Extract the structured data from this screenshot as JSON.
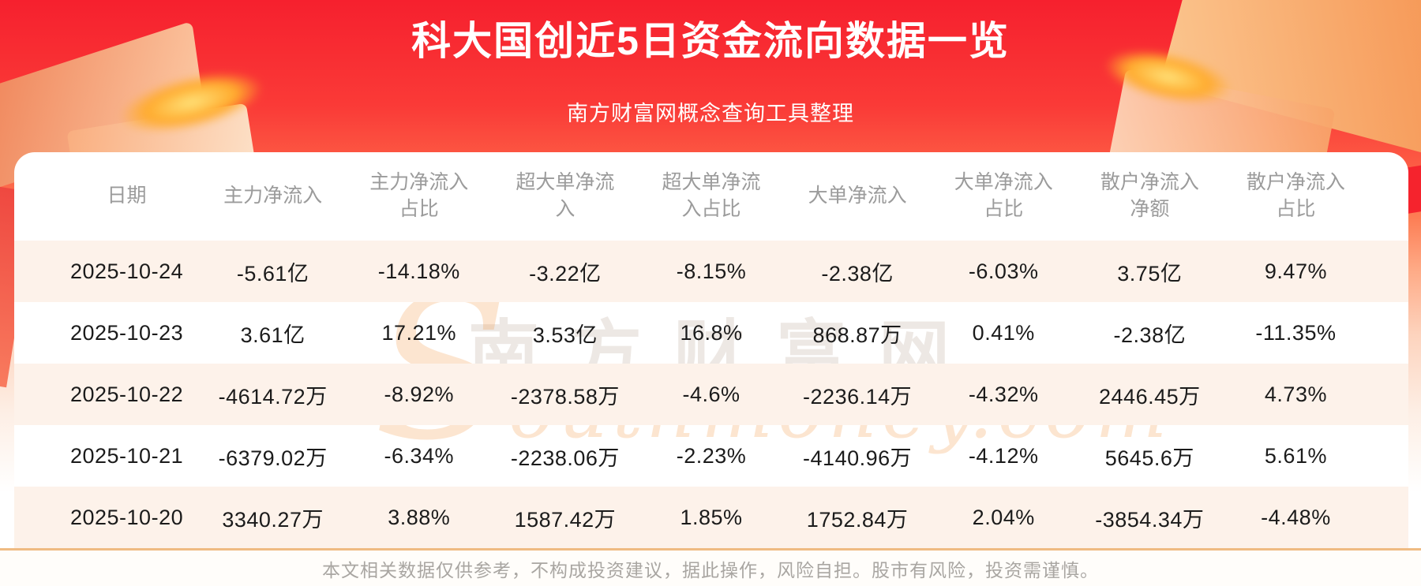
{
  "page": {
    "title": "科大国创近5日资金流向数据一览",
    "subtitle": "南方财富网概念查询工具整理",
    "disclaimer": "本文相关数据仅供参考，不构成投资建议，据此操作，风险自担。股市有风险，投资需谨慎。"
  },
  "colors": {
    "banner_red": "#f6202e",
    "row_stripe": "#fdf2ea",
    "separator": "#efbb82",
    "header_text": "#9b9b9b",
    "body_text": "#1b1b1b",
    "footer_text": "#a9a6a2",
    "title_text": "#ffffff"
  },
  "watermark": {
    "cn": "南方财富网",
    "en_initial": "S",
    "en_rest": "outhmoney.com"
  },
  "table": {
    "headers": [
      "日期",
      "主力净流入",
      "主力净流入\n占比",
      "超大单净流\n入",
      "超大单净流\n入占比",
      "大单净流入",
      "大单净流入\n占比",
      "散户净流入\n净额",
      "散户净流入\n占比"
    ],
    "rows": [
      [
        "2025-10-24",
        "-5.61亿",
        "-14.18%",
        "-3.22亿",
        "-8.15%",
        "-2.38亿",
        "-6.03%",
        "3.75亿",
        "9.47%"
      ],
      [
        "2025-10-23",
        "3.61亿",
        "17.21%",
        "3.53亿",
        "16.8%",
        "868.87万",
        "0.41%",
        "-2.38亿",
        "-11.35%"
      ],
      [
        "2025-10-22",
        "-4614.72万",
        "-8.92%",
        "-2378.58万",
        "-4.6%",
        "-2236.14万",
        "-4.32%",
        "2446.45万",
        "4.73%"
      ],
      [
        "2025-10-21",
        "-6379.02万",
        "-6.34%",
        "-2238.06万",
        "-2.23%",
        "-4140.96万",
        "-4.12%",
        "5645.6万",
        "5.61%"
      ],
      [
        "2025-10-20",
        "3340.27万",
        "3.88%",
        "1587.42万",
        "1.85%",
        "1752.84万",
        "2.04%",
        "-3854.34万",
        "-4.48%"
      ]
    ]
  }
}
